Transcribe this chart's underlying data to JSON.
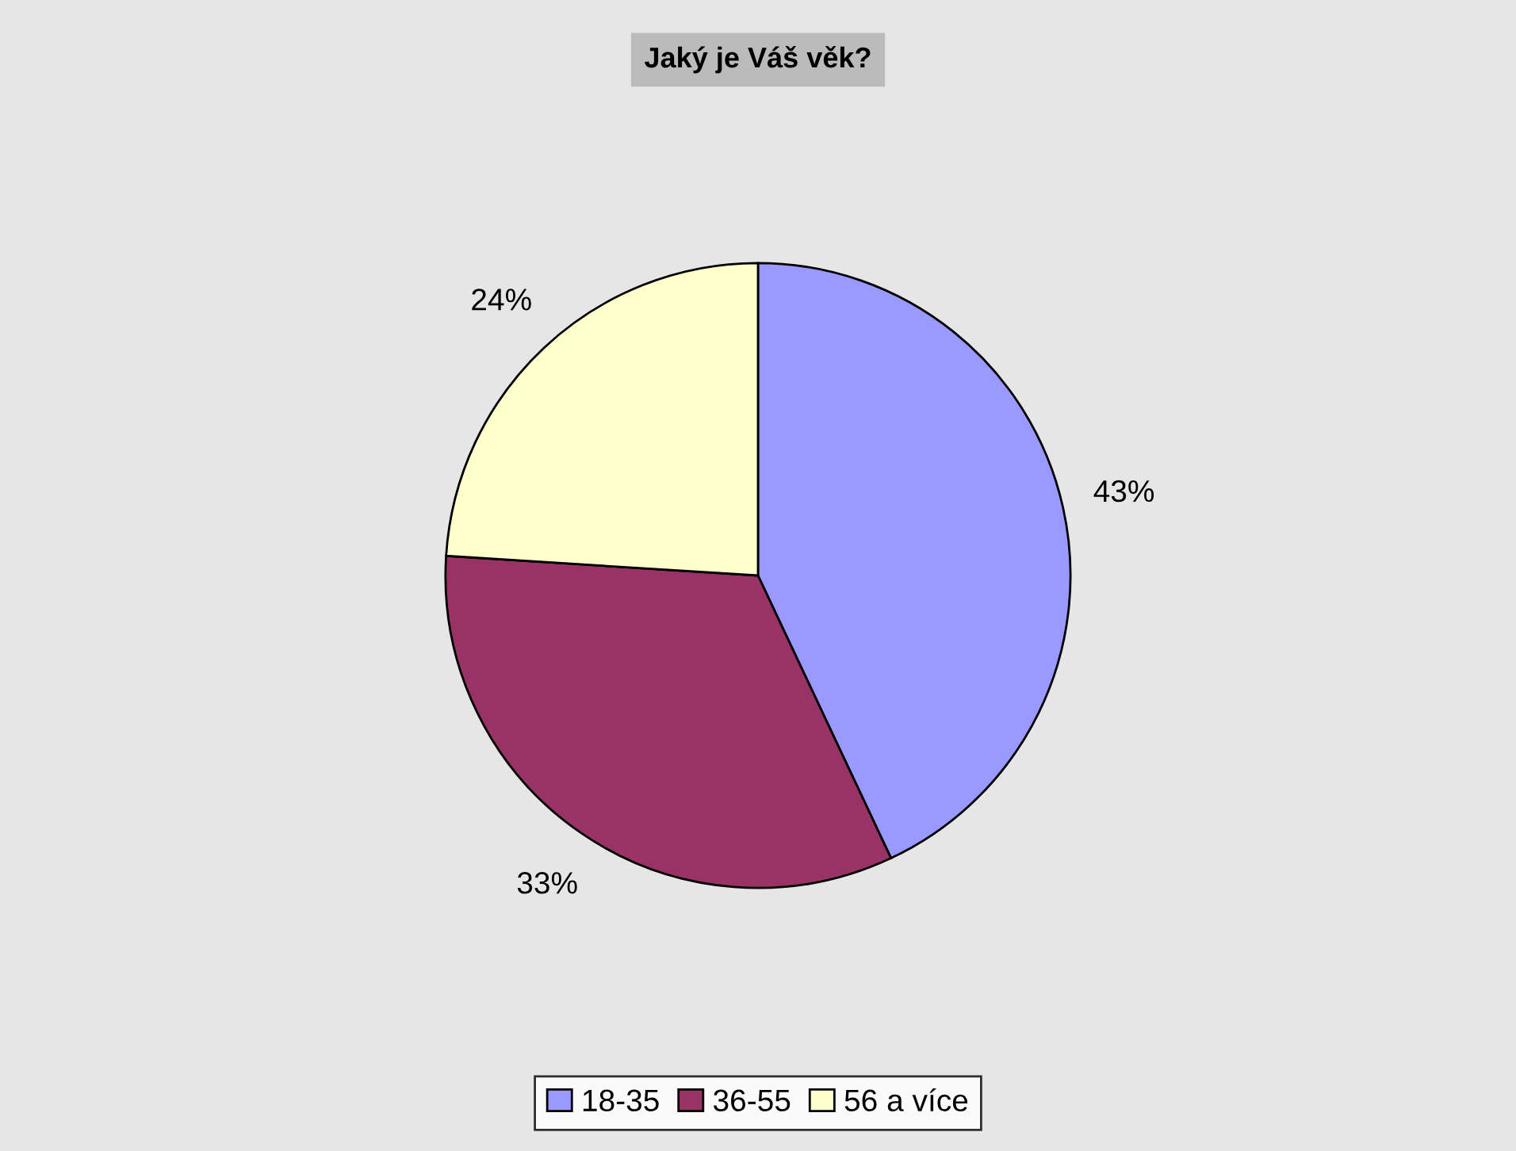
{
  "chart_data": {
    "type": "pie",
    "title": "Jaký je Váš věk?",
    "categories": [
      "18-35",
      "36-55",
      "56 a více"
    ],
    "values": [
      43,
      33,
      24
    ],
    "colors": [
      "#9999ff",
      "#993366",
      "#ffffcc"
    ],
    "value_labels": [
      "43%",
      "33%",
      "24%"
    ],
    "legend": "bottom"
  }
}
